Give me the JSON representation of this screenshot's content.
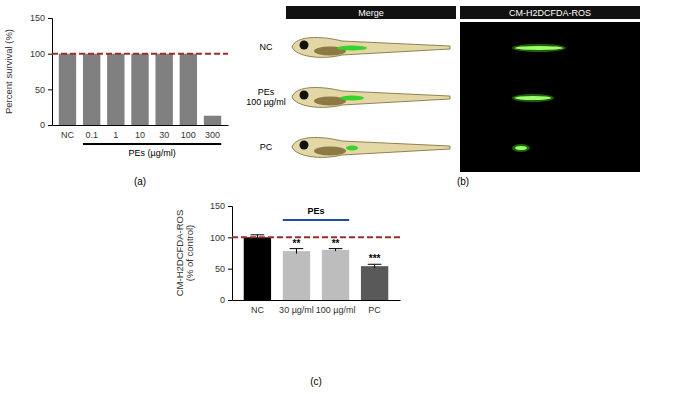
{
  "chart_data": [
    {
      "type": "bar",
      "panel_label": "(a)",
      "ylabel": "Percent survival (%)",
      "categories": [
        "NC",
        "0.1",
        "1",
        "10",
        "30",
        "100",
        "300"
      ],
      "values": [
        100,
        100,
        100,
        100,
        100,
        100,
        13
      ],
      "color": "#808080",
      "ylim": [
        0,
        150
      ],
      "yticks": [
        0,
        50,
        100,
        150
      ],
      "reference_line": 100,
      "reference_color": "#9b2d2d",
      "group": {
        "text": "PEs (µg/ml)",
        "categories": [
          "0.1",
          "1",
          "10",
          "30",
          "100",
          "300"
        ],
        "color": "#000000"
      }
    },
    {
      "type": "bar",
      "panel_label": "(c)",
      "ylabel": "CM-H2DCFDA-ROS\n(% of control)",
      "categories": [
        "NC",
        "30 µg/ml",
        "100 µg/ml",
        "PC"
      ],
      "values": [
        100,
        78,
        80,
        54
      ],
      "errors": [
        4,
        4,
        2,
        3
      ],
      "significance": [
        null,
        "**",
        "**",
        "***"
      ],
      "colors": [
        "#000000",
        "#bdbdbd",
        "#bdbdbd",
        "#595959"
      ],
      "ylim": [
        0,
        150
      ],
      "yticks": [
        0,
        50,
        100,
        150
      ],
      "reference_line": 100,
      "reference_color": "#9b2d2d",
      "group": {
        "text": "PEs",
        "categories": [
          "30 µg/ml",
          "100 µg/ml"
        ],
        "color": "#1f4e9c"
      }
    }
  ],
  "image_panel": {
    "panel_label": "(b)",
    "columns": [
      "Merge",
      "CM-H2DCFDA-ROS"
    ],
    "rows": [
      [
        "NC"
      ],
      [
        "PEs",
        "100 µg/ml"
      ],
      [
        "PC"
      ]
    ]
  }
}
